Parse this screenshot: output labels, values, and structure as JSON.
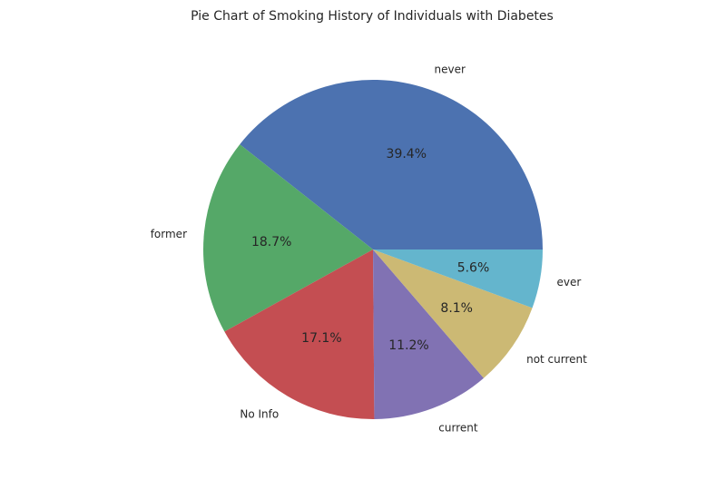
{
  "chart_data": {
    "type": "pie",
    "title": "Pie Chart of Smoking History of Individuals with Diabetes",
    "start_angle": "0 degrees (3 o'clock)",
    "direction": "counter-clockwise",
    "categories": [
      "never",
      "former",
      "No Info",
      "current",
      "not current",
      "ever"
    ],
    "values": [
      39.4,
      18.7,
      17.1,
      11.2,
      8.1,
      5.6
    ],
    "value_labels": [
      "39.4%",
      "18.7%",
      "17.1%",
      "11.2%",
      "8.1%",
      "5.6%"
    ],
    "colors": [
      "#4c72b0",
      "#55a868",
      "#c44e52",
      "#8172b3",
      "#ccb974",
      "#64b5cd"
    ],
    "legend": "none"
  }
}
